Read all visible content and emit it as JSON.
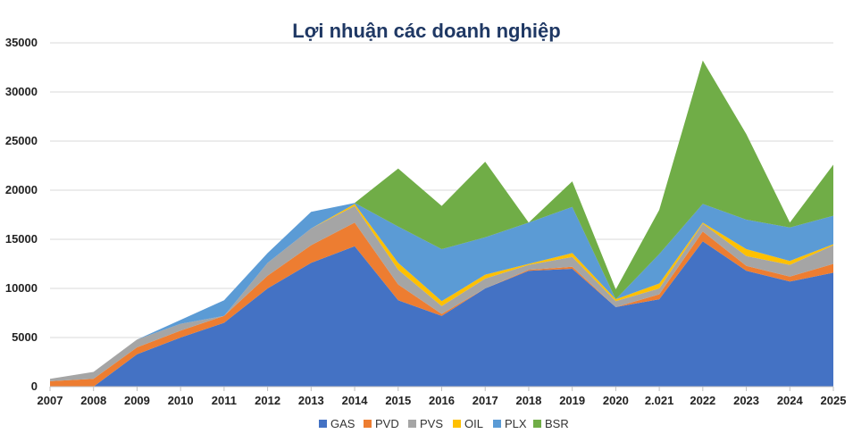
{
  "chart_data": {
    "type": "area",
    "stacked": true,
    "title": "Lợi nhuận các doanh nghiệp",
    "xlabel": "",
    "ylabel": "",
    "ylim": [
      0,
      35000
    ],
    "y_ticks": [
      0,
      5000,
      10000,
      15000,
      20000,
      25000,
      30000,
      35000
    ],
    "grid": true,
    "legend_position": "bottom",
    "categories": [
      "2007",
      "2008",
      "2009",
      "2010",
      "2011",
      "2012",
      "2013",
      "2014",
      "2015",
      "2016",
      "2017",
      "2018",
      "2019",
      "2020",
      "2.021",
      "2022",
      "2023",
      "2024",
      "2025"
    ],
    "series": [
      {
        "name": "GAS",
        "color": "#4472c4",
        "values": [
          0,
          0,
          3300,
          5000,
          6500,
          10000,
          12600,
          14300,
          8800,
          7200,
          10000,
          11800,
          12000,
          8100,
          8900,
          14800,
          11800,
          10700,
          11600
        ]
      },
      {
        "name": "PVD",
        "color": "#ed7d31",
        "values": [
          550,
          800,
          700,
          700,
          700,
          1300,
          1800,
          2400,
          1600,
          200,
          0,
          100,
          200,
          0,
          500,
          1000,
          500,
          500,
          900
        ]
      },
      {
        "name": "PVS",
        "color": "#a5a5a5",
        "values": [
          250,
          700,
          800,
          700,
          0,
          1300,
          1700,
          1700,
          1500,
          800,
          1000,
          500,
          1000,
          600,
          600,
          800,
          1000,
          1200,
          1900
        ]
      },
      {
        "name": "OIL",
        "color": "#ffc000",
        "values": [
          0,
          0,
          0,
          0,
          0,
          0,
          0,
          200,
          700,
          500,
          400,
          100,
          400,
          200,
          500,
          100,
          700,
          400,
          100
        ]
      },
      {
        "name": "PLX",
        "color": "#5b9bd5",
        "values": [
          0,
          0,
          0,
          400,
          1600,
          1000,
          1700,
          100,
          3700,
          5300,
          3800,
          4200,
          4700,
          0,
          3000,
          1900,
          3000,
          3400,
          2900
        ]
      },
      {
        "name": "BSR",
        "color": "#70ad47",
        "values": [
          0,
          0,
          0,
          0,
          0,
          0,
          0,
          0,
          5900,
          4400,
          7700,
          0,
          2600,
          1000,
          4500,
          14600,
          8700,
          500,
          5200
        ]
      }
    ]
  }
}
